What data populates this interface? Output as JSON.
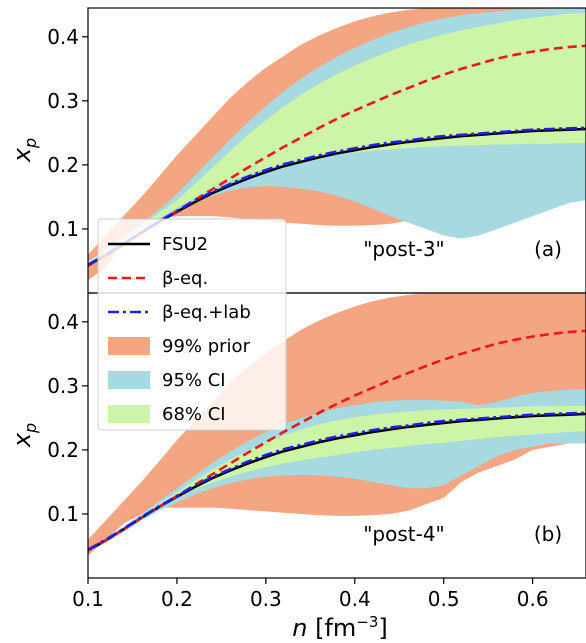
{
  "chart_data": [
    {
      "type": "area",
      "panel_label": "(a)",
      "annotation": "\"post-3\"",
      "ylabel": "x",
      "ylabel_sub": "p",
      "xlim": [
        0.1,
        0.66
      ],
      "ylim": [
        0.0,
        0.445
      ],
      "yticks": [
        "0.1",
        "0.2",
        "0.3",
        "0.4"
      ],
      "ytick_values": [
        0.1,
        0.2,
        0.3,
        0.4
      ],
      "x": [
        0.1,
        0.12,
        0.14,
        0.16,
        0.18,
        0.2,
        0.22,
        0.24,
        0.26,
        0.28,
        0.3,
        0.32,
        0.34,
        0.36,
        0.38,
        0.4,
        0.42,
        0.44,
        0.46,
        0.48,
        0.5,
        0.52,
        0.54,
        0.56,
        0.58,
        0.6,
        0.62,
        0.64,
        0.66
      ],
      "bands": [
        {
          "name": "99% prior",
          "color": "#f4a582",
          "lower": [
            0.02,
            0.04,
            0.08,
            0.105,
            0.115,
            0.12,
            0.12,
            0.12,
            0.118,
            0.115,
            0.112,
            0.11,
            0.108,
            0.106,
            0.105,
            0.105,
            0.106,
            0.108,
            0.113,
            0.122,
            0.13,
            0.15,
            0.165,
            0.178,
            0.19,
            0.2,
            0.205,
            0.212,
            0.213
          ],
          "upper": [
            0.06,
            0.09,
            0.12,
            0.15,
            0.182,
            0.215,
            0.245,
            0.275,
            0.305,
            0.33,
            0.352,
            0.37,
            0.388,
            0.402,
            0.414,
            0.424,
            0.432,
            0.438,
            0.442,
            0.445,
            0.445,
            0.445,
            0.445,
            0.445,
            0.445,
            0.445,
            0.445,
            0.445,
            0.445
          ]
        },
        {
          "name": "95% CI",
          "color": "#a6d9e0",
          "lower": [
            0.045,
            0.06,
            0.08,
            0.1,
            0.115,
            0.13,
            0.142,
            0.152,
            0.16,
            0.165,
            0.167,
            0.166,
            0.163,
            0.159,
            0.152,
            0.143,
            0.132,
            0.12,
            0.11,
            0.1,
            0.09,
            0.085,
            0.09,
            0.1,
            0.11,
            0.12,
            0.13,
            0.14,
            0.145
          ],
          "upper": [
            0.05,
            0.068,
            0.088,
            0.11,
            0.13,
            0.155,
            0.183,
            0.212,
            0.24,
            0.267,
            0.292,
            0.315,
            0.335,
            0.353,
            0.369,
            0.383,
            0.395,
            0.406,
            0.415,
            0.423,
            0.429,
            0.434,
            0.437,
            0.44,
            0.442,
            0.443,
            0.444,
            0.445,
            0.445
          ]
        },
        {
          "name": "68% CI",
          "color": "#ccf5a8",
          "lower": [
            0.046,
            0.062,
            0.082,
            0.1,
            0.117,
            0.133,
            0.148,
            0.162,
            0.175,
            0.185,
            0.194,
            0.201,
            0.207,
            0.212,
            0.216,
            0.219,
            0.222,
            0.224,
            0.226,
            0.228,
            0.229,
            0.23,
            0.231,
            0.232,
            0.232,
            0.233,
            0.233,
            0.234,
            0.234
          ],
          "upper": [
            0.049,
            0.066,
            0.086,
            0.106,
            0.125,
            0.145,
            0.17,
            0.196,
            0.222,
            0.247,
            0.27,
            0.291,
            0.31,
            0.327,
            0.342,
            0.355,
            0.367,
            0.378,
            0.388,
            0.396,
            0.404,
            0.41,
            0.416,
            0.421,
            0.426,
            0.43,
            0.433,
            0.436,
            0.438
          ]
        }
      ],
      "series": [
        {
          "name": "FSU2",
          "color": "#000000",
          "style": "solid",
          "values": [
            0.043,
            0.059,
            0.076,
            0.094,
            0.111,
            0.127,
            0.142,
            0.156,
            0.168,
            0.179,
            0.189,
            0.198,
            0.205,
            0.212,
            0.218,
            0.223,
            0.228,
            0.232,
            0.236,
            0.239,
            0.242,
            0.245,
            0.247,
            0.249,
            0.251,
            0.253,
            0.254,
            0.255,
            0.256
          ]
        },
        {
          "name": "β-eq.",
          "color": "#e8191b",
          "style": "dashed",
          "values": [
            0.043,
            0.059,
            0.076,
            0.094,
            0.111,
            0.128,
            0.145,
            0.162,
            0.179,
            0.196,
            0.212,
            0.228,
            0.243,
            0.258,
            0.272,
            0.285,
            0.297,
            0.309,
            0.32,
            0.331,
            0.341,
            0.35,
            0.358,
            0.366,
            0.372,
            0.377,
            0.381,
            0.384,
            0.386
          ]
        },
        {
          "name": "β-eq.+lab",
          "color": "#1f1fe8",
          "style": "dashdot",
          "values": [
            0.044,
            0.06,
            0.077,
            0.095,
            0.112,
            0.128,
            0.144,
            0.158,
            0.17,
            0.182,
            0.192,
            0.201,
            0.208,
            0.215,
            0.221,
            0.226,
            0.231,
            0.235,
            0.238,
            0.242,
            0.245,
            0.247,
            0.249,
            0.251,
            0.253,
            0.255,
            0.256,
            0.257,
            0.258
          ]
        }
      ]
    },
    {
      "type": "area",
      "panel_label": "(b)",
      "annotation": "\"post-4\"",
      "ylabel": "x",
      "ylabel_sub": "p",
      "xlabel": "n",
      "xlabel_unit": "[fm",
      "xlabel_exp": "−3",
      "xlabel_close": "]",
      "xlim": [
        0.1,
        0.66
      ],
      "ylim": [
        0.0,
        0.445
      ],
      "xticks": [
        "0.1",
        "0.2",
        "0.3",
        "0.4",
        "0.5",
        "0.6"
      ],
      "xtick_values": [
        0.1,
        0.2,
        0.3,
        0.4,
        0.5,
        0.6
      ],
      "yticks": [
        "0.1",
        "0.2",
        "0.3",
        "0.4"
      ],
      "ytick_values": [
        0.1,
        0.2,
        0.3,
        0.4
      ],
      "x": [
        0.1,
        0.12,
        0.14,
        0.16,
        0.18,
        0.2,
        0.22,
        0.24,
        0.26,
        0.28,
        0.3,
        0.32,
        0.34,
        0.36,
        0.38,
        0.4,
        0.42,
        0.44,
        0.46,
        0.48,
        0.5,
        0.52,
        0.54,
        0.56,
        0.58,
        0.6,
        0.62,
        0.64,
        0.66
      ],
      "bands": [
        {
          "name": "99% prior",
          "color": "#f4a582",
          "lower": [
            0.035,
            0.06,
            0.085,
            0.1,
            0.11,
            0.11,
            0.11,
            0.11,
            0.108,
            0.106,
            0.104,
            0.102,
            0.1,
            0.098,
            0.097,
            0.097,
            0.098,
            0.1,
            0.105,
            0.115,
            0.125,
            0.15,
            0.165,
            0.175,
            0.185,
            0.2,
            0.205,
            0.21,
            0.21
          ],
          "upper": [
            0.06,
            0.09,
            0.12,
            0.15,
            0.182,
            0.215,
            0.245,
            0.275,
            0.305,
            0.33,
            0.352,
            0.37,
            0.388,
            0.402,
            0.414,
            0.424,
            0.432,
            0.438,
            0.442,
            0.445,
            0.445,
            0.445,
            0.445,
            0.445,
            0.445,
            0.445,
            0.445,
            0.445,
            0.445
          ]
        },
        {
          "name": "95% CI",
          "color": "#a6d9e0",
          "lower": [
            0.04,
            0.055,
            0.072,
            0.09,
            0.105,
            0.118,
            0.13,
            0.14,
            0.148,
            0.154,
            0.158,
            0.16,
            0.161,
            0.16,
            0.158,
            0.155,
            0.15,
            0.145,
            0.14,
            0.14,
            0.145,
            0.16,
            0.175,
            0.19,
            0.2,
            0.205,
            0.21,
            0.21,
            0.21
          ],
          "upper": [
            0.045,
            0.062,
            0.08,
            0.1,
            0.12,
            0.14,
            0.16,
            0.18,
            0.198,
            0.214,
            0.228,
            0.24,
            0.25,
            0.258,
            0.265,
            0.27,
            0.274,
            0.277,
            0.278,
            0.278,
            0.277,
            0.275,
            0.27,
            0.275,
            0.283,
            0.289,
            0.292,
            0.294,
            0.295
          ]
        },
        {
          "name": "68% CI",
          "color": "#ccf5a8",
          "lower": [
            0.041,
            0.057,
            0.075,
            0.093,
            0.11,
            0.125,
            0.138,
            0.149,
            0.158,
            0.166,
            0.173,
            0.179,
            0.184,
            0.188,
            0.192,
            0.196,
            0.2,
            0.203,
            0.206,
            0.209,
            0.211,
            0.214,
            0.217,
            0.22,
            0.222,
            0.224,
            0.226,
            0.228,
            0.229
          ],
          "upper": [
            0.044,
            0.06,
            0.078,
            0.097,
            0.116,
            0.134,
            0.152,
            0.169,
            0.185,
            0.199,
            0.212,
            0.223,
            0.232,
            0.24,
            0.246,
            0.251,
            0.255,
            0.258,
            0.26,
            0.262,
            0.263,
            0.264,
            0.265,
            0.266,
            0.267,
            0.268,
            0.268,
            0.269,
            0.269
          ]
        }
      ],
      "series": [
        {
          "name": "FSU2",
          "color": "#000000",
          "style": "solid",
          "values": [
            0.043,
            0.059,
            0.076,
            0.094,
            0.111,
            0.127,
            0.142,
            0.156,
            0.168,
            0.179,
            0.189,
            0.198,
            0.205,
            0.212,
            0.218,
            0.223,
            0.228,
            0.232,
            0.236,
            0.239,
            0.242,
            0.245,
            0.247,
            0.249,
            0.251,
            0.253,
            0.254,
            0.255,
            0.256
          ]
        },
        {
          "name": "β-eq.",
          "color": "#e8191b",
          "style": "dashed",
          "values": [
            0.043,
            0.059,
            0.076,
            0.094,
            0.111,
            0.128,
            0.145,
            0.162,
            0.179,
            0.196,
            0.212,
            0.228,
            0.243,
            0.258,
            0.272,
            0.285,
            0.297,
            0.309,
            0.32,
            0.331,
            0.341,
            0.35,
            0.358,
            0.366,
            0.372,
            0.377,
            0.381,
            0.384,
            0.386
          ]
        },
        {
          "name": "β-eq.+lab",
          "color": "#1f1fe8",
          "style": "dashdot",
          "values": [
            0.044,
            0.06,
            0.077,
            0.095,
            0.112,
            0.128,
            0.144,
            0.158,
            0.17,
            0.182,
            0.192,
            0.201,
            0.208,
            0.215,
            0.221,
            0.226,
            0.231,
            0.235,
            0.238,
            0.242,
            0.245,
            0.247,
            0.249,
            0.251,
            0.253,
            0.255,
            0.256,
            0.257,
            0.258
          ]
        }
      ]
    }
  ],
  "legend": {
    "placement": "lower-left of top panel",
    "entries": [
      {
        "label": "FSU2",
        "kind": "line",
        "color": "#000000",
        "style": "solid"
      },
      {
        "label": "β-eq.",
        "kind": "line",
        "color": "#e8191b",
        "style": "dashed"
      },
      {
        "label": "β-eq.+lab",
        "kind": "line",
        "color": "#1f1fe8",
        "style": "dashdot"
      },
      {
        "label": "99% prior",
        "kind": "patch",
        "color": "#f4a582"
      },
      {
        "label": "95% CI",
        "kind": "patch",
        "color": "#a6d9e0"
      },
      {
        "label": "68% CI",
        "kind": "patch",
        "color": "#ccf5a8"
      }
    ]
  }
}
